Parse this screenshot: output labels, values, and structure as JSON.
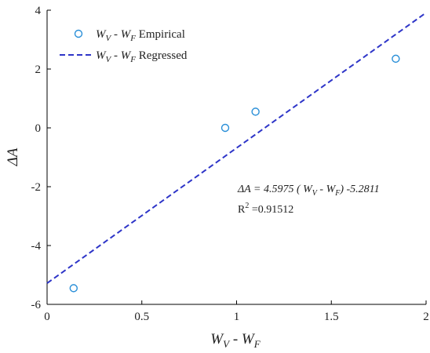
{
  "chart_data": {
    "type": "scatter",
    "xlim": [
      0,
      2
    ],
    "ylim": [
      -6,
      4
    ],
    "x_ticks": [
      0,
      0.5,
      1,
      1.5,
      2
    ],
    "x_tick_labels": [
      "0",
      "0.5",
      "1",
      "1.5",
      "2"
    ],
    "y_ticks": [
      -6,
      -4,
      -2,
      0,
      2,
      4
    ],
    "y_tick_labels": [
      "-6",
      "-4",
      "-2",
      "0",
      "2",
      "4"
    ],
    "grid": false,
    "legend_position": "top-left",
    "xlabel": {
      "main": "W",
      "sub1": "V",
      "mid": " - W",
      "sub2": "F"
    },
    "ylabel": "ΔA",
    "series": [
      {
        "name": "W_V - W_F Empirical",
        "kind": "scatter",
        "color": "#2a8fd8",
        "points": [
          {
            "x": 0.14,
            "y": -5.45
          },
          {
            "x": 0.94,
            "y": 0.0
          },
          {
            "x": 1.1,
            "y": 0.55
          },
          {
            "x": 1.84,
            "y": 2.35
          }
        ]
      },
      {
        "name": "W_V - W_F Regressed",
        "kind": "line",
        "color": "#2e35c8",
        "slope": 4.5975,
        "intercept": -5.2811
      }
    ],
    "legend": [
      {
        "var1": "W",
        "sub1": "V",
        "mid": " - W",
        "sub2": "F",
        "suffix": " Empirical"
      },
      {
        "var1": "W",
        "sub1": "V",
        "mid": " - W",
        "sub2": "F",
        "suffix": " Regressed"
      }
    ],
    "annotation": {
      "eq_lhs": "ΔA = 4.5975 ( W",
      "eq_sub1": "V",
      "eq_mid": " - W",
      "eq_sub2": "F",
      "eq_rhs": ") -5.2811",
      "r2_label": "R",
      "r2_sup": "2",
      "r2_value": " =0.91512"
    }
  }
}
